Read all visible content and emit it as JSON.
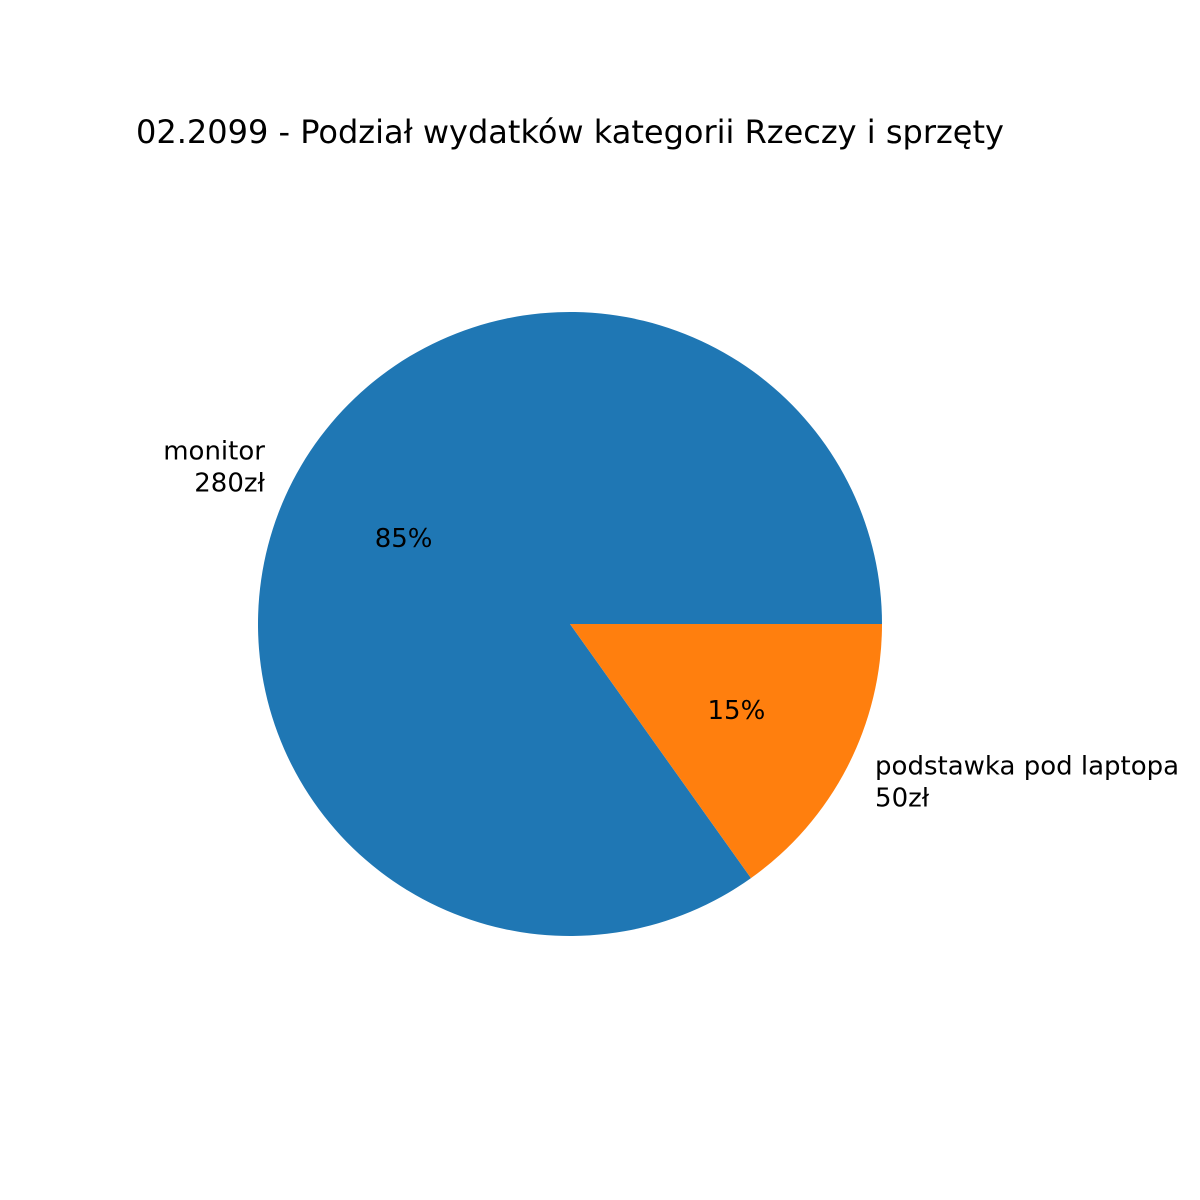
{
  "chart_data": {
    "type": "pie",
    "title": "02.2099 - Podział wydatków kategorii Rzeczy i sprzęty",
    "slices": [
      {
        "name": "monitor",
        "value_label": "280zł",
        "value": 280,
        "percent_label": "85%",
        "color": "#1f77b4"
      },
      {
        "name": "podstawka pod laptopa",
        "value_label": "50zł",
        "value": 50,
        "percent_label": "15%",
        "color": "#ff7f0e"
      }
    ],
    "start_angle_deg": 0,
    "direction": "clockwise-on-screen (counterclockwise in math coords, starting at 3 o'clock)"
  }
}
